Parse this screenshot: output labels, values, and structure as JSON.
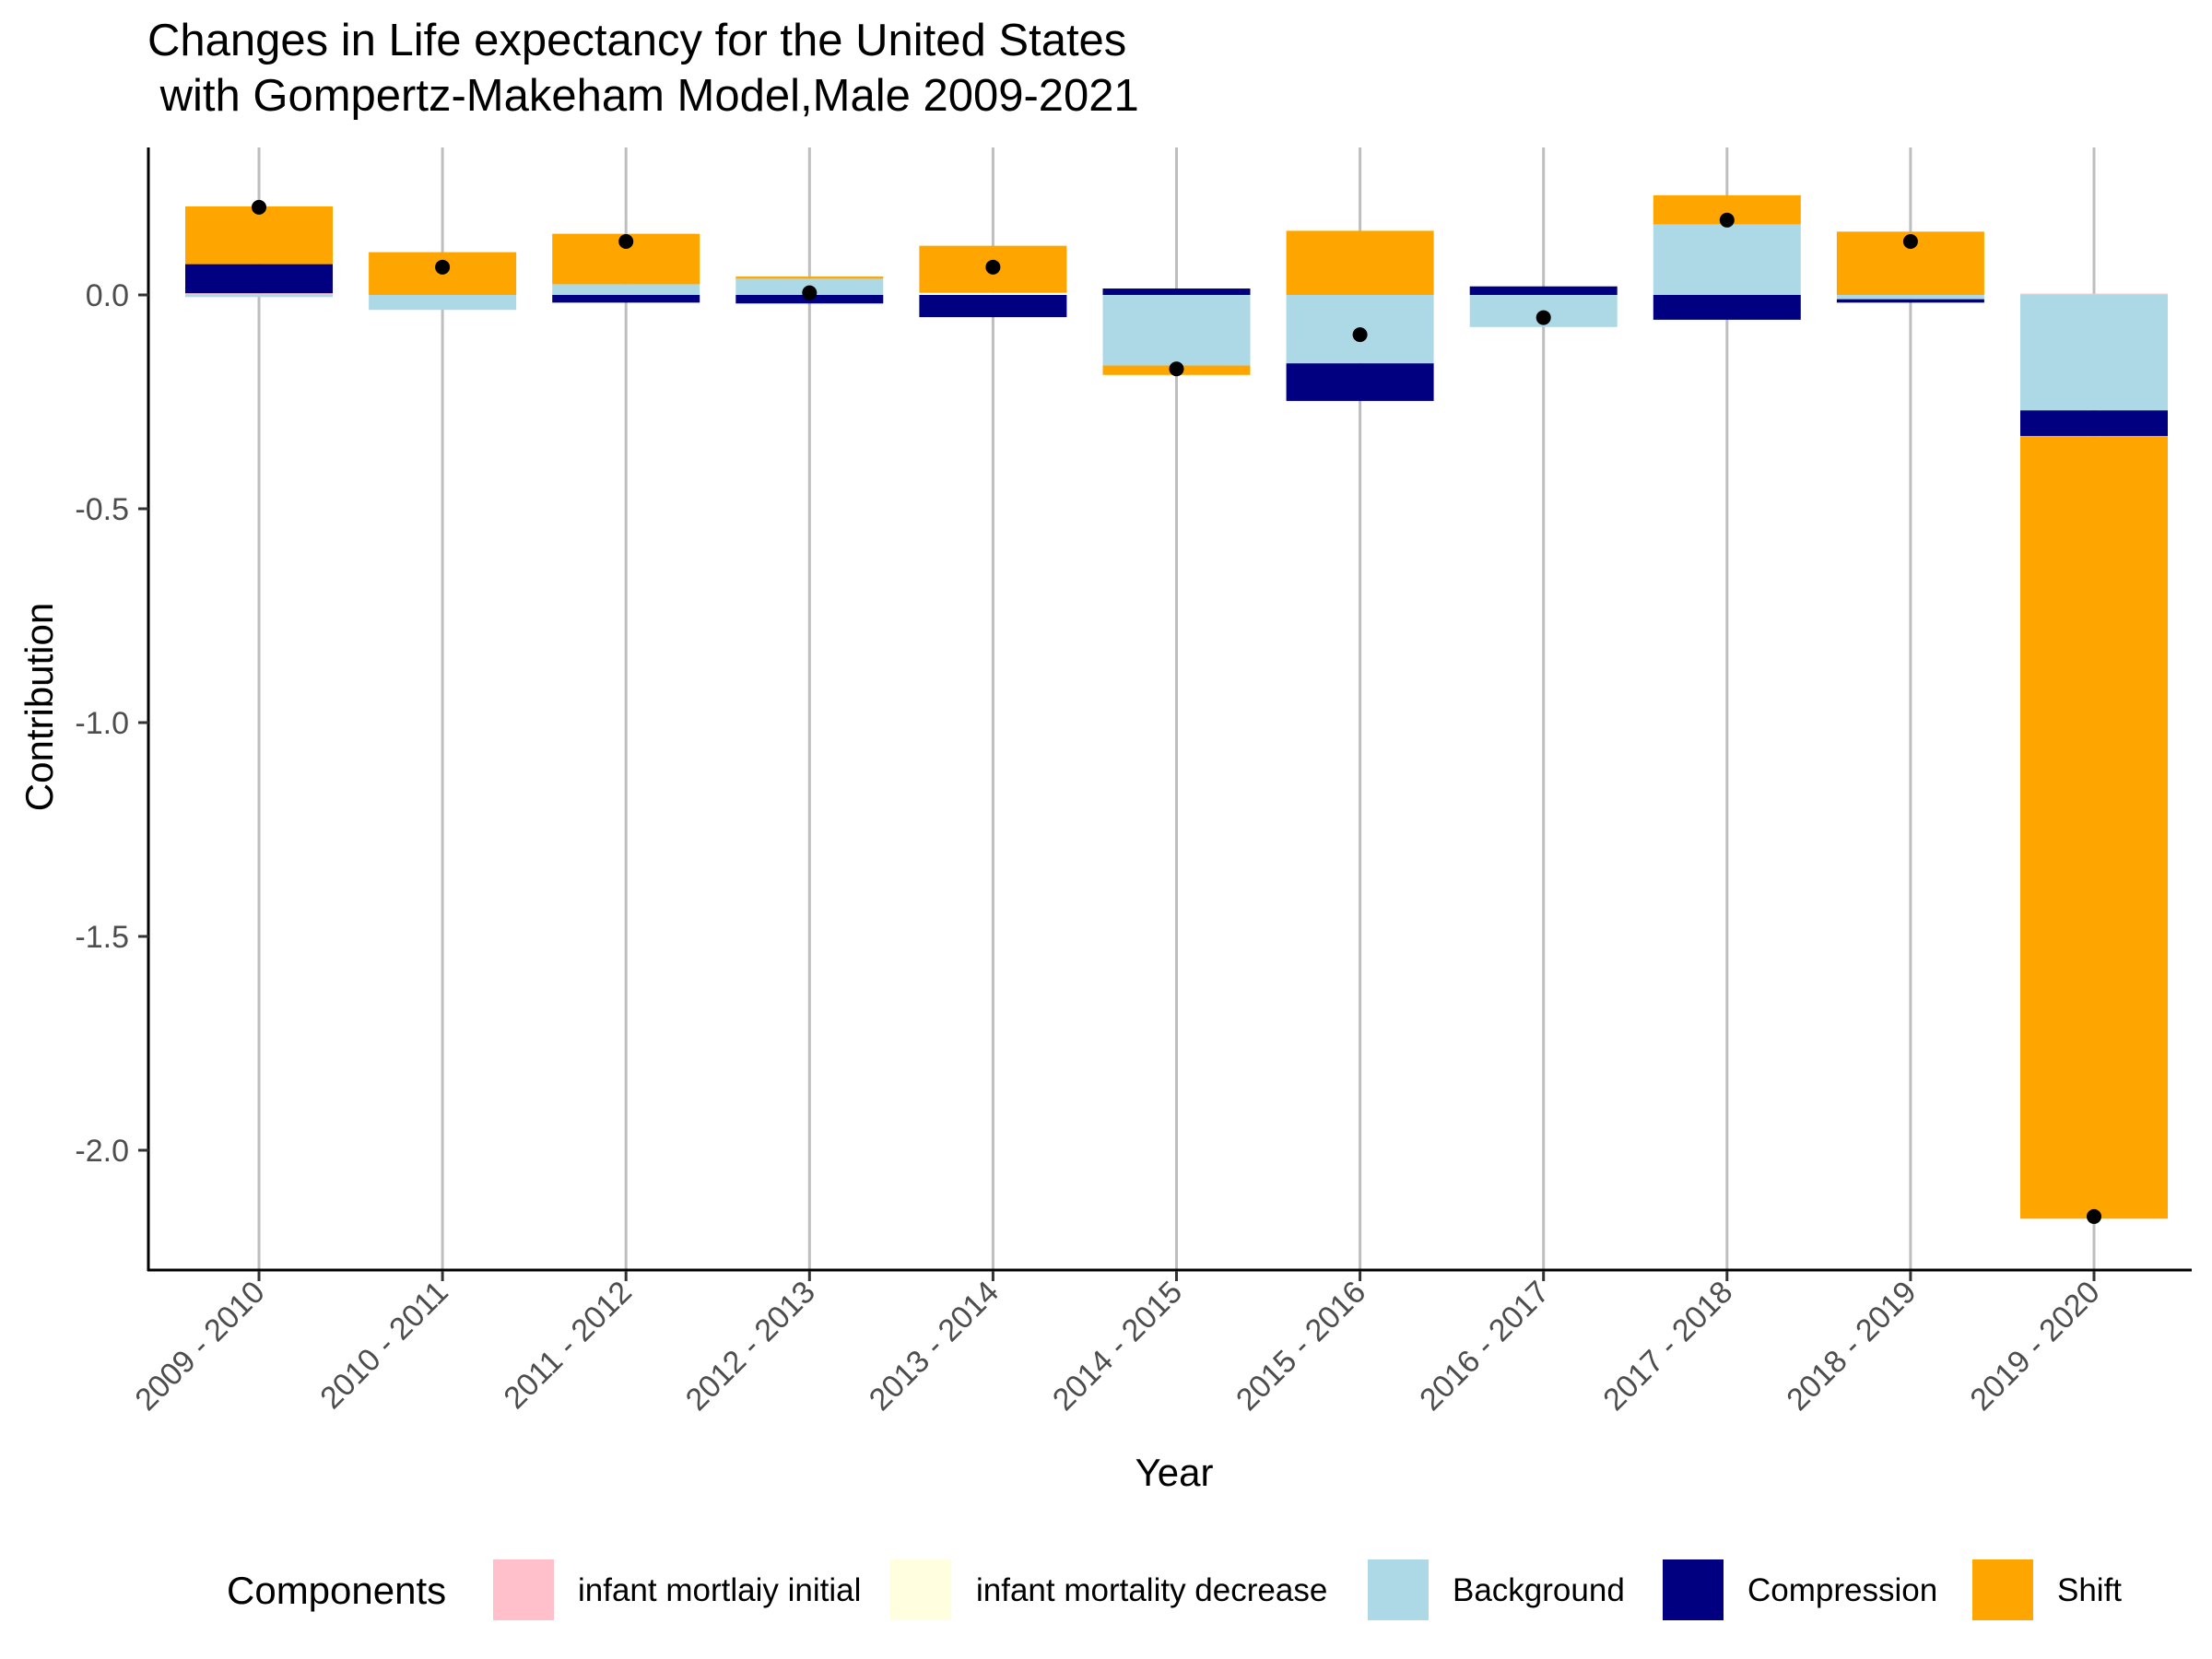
{
  "chart_data": {
    "type": "bar",
    "stacked": true,
    "title": [
      "Changes in Life expectancy for the United States",
      " with Gompertz-Makeham Model,Male 2009-2021"
    ],
    "xlabel": "Year",
    "ylabel": "Contribution",
    "ylim": [
      -2.28,
      0.35
    ],
    "yticks": [
      0.0,
      -0.5,
      -1.0,
      -1.5,
      -2.0
    ],
    "ytick_labels": [
      "0.0",
      "-0.5",
      "-1.0",
      "-1.5",
      "-2.0"
    ],
    "categories": [
      "2009 - 2010",
      "2010 - 2011",
      "2011 - 2012",
      "2012 - 2013",
      "2013 - 2014",
      "2014 - 2015",
      "2015 - 2016",
      "2016 - 2017",
      "2017 - 2018",
      "2018 - 2019",
      "2019 - 2020"
    ],
    "legend_title": "Components",
    "series": [
      {
        "name": "infant mortlaiy initial",
        "color": "#FFC0CB",
        "values": [
          0.004,
          0.0,
          0.0,
          0.0,
          0.0,
          0.0,
          0.0,
          0.0,
          0.0,
          0.0,
          0.003
        ]
      },
      {
        "name": "infant mortality decrease",
        "color": "#FFFFE0",
        "values": [
          0.0,
          0.0,
          0.0,
          0.0,
          0.005,
          0.0,
          0.0,
          0.0,
          0.0,
          0.0,
          0.0
        ]
      },
      {
        "name": "Background",
        "color": "#ADD8E6",
        "values": [
          -0.005,
          -0.035,
          0.025,
          0.038,
          0.0,
          -0.165,
          -0.16,
          -0.075,
          0.165,
          -0.01,
          -0.27
        ]
      },
      {
        "name": "Compression",
        "color": "#000080",
        "values": [
          0.068,
          0.0,
          -0.018,
          -0.02,
          -0.052,
          0.015,
          -0.088,
          0.02,
          -0.058,
          -0.008,
          -0.06
        ]
      },
      {
        "name": "Shift",
        "color": "#FFA500",
        "values": [
          0.135,
          0.1,
          0.118,
          0.005,
          0.11,
          -0.022,
          0.15,
          0.0,
          0.068,
          0.148,
          -1.83
        ]
      }
    ],
    "totals": [
      0.205,
      0.065,
      0.125,
      0.005,
      0.065,
      -0.173,
      -0.093,
      -0.053,
      0.175,
      0.125,
      -2.155
    ],
    "legend_position": "bottom"
  },
  "colors": {
    "axis": "#000000",
    "grid": "#BEBEBE",
    "tick_text": "#4D4D4D",
    "point": "#000000"
  }
}
